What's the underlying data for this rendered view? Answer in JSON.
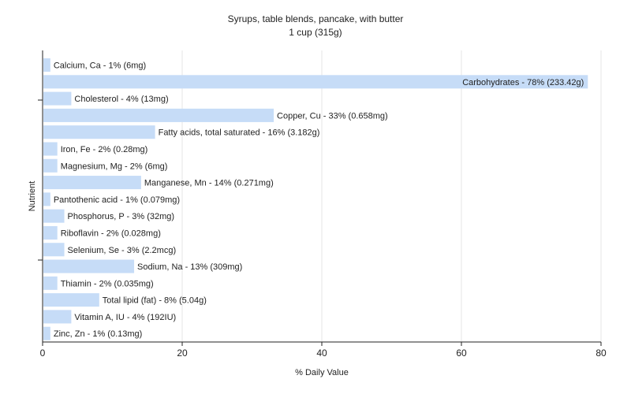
{
  "chart_data": {
    "type": "bar",
    "orientation": "horizontal",
    "title": "Syrups, table blends, pancake, with butter",
    "subtitle": "1 cup (315g)",
    "xlabel": "% Daily Value",
    "ylabel": "Nutrient",
    "xlim": [
      0,
      80
    ],
    "xticks": [
      0,
      20,
      40,
      60,
      80
    ],
    "grid": true,
    "bar_color": "#c6dcf7",
    "categories": [
      "Calcium, Ca",
      "Carbohydrates",
      "Cholesterol",
      "Copper, Cu",
      "Fatty acids, total saturated",
      "Iron, Fe",
      "Magnesium, Mg",
      "Manganese, Mn",
      "Pantothenic acid",
      "Phosphorus, P",
      "Riboflavin",
      "Selenium, Se",
      "Sodium, Na",
      "Thiamin",
      "Total lipid (fat)",
      "Vitamin A, IU",
      "Zinc, Zn"
    ],
    "values": [
      1,
      78,
      4,
      33,
      16,
      2,
      2,
      14,
      1,
      3,
      2,
      3,
      13,
      2,
      8,
      4,
      1
    ],
    "labels": [
      "Calcium, Ca - 1% (6mg)",
      "Carbohydrates - 78% (233.42g)",
      "Cholesterol - 4% (13mg)",
      "Copper, Cu - 33% (0.658mg)",
      "Fatty acids, total saturated - 16% (3.182g)",
      "Iron, Fe - 2% (0.28mg)",
      "Magnesium, Mg - 2% (6mg)",
      "Manganese, Mn - 14% (0.271mg)",
      "Pantothenic acid - 1% (0.079mg)",
      "Phosphorus, P - 3% (32mg)",
      "Riboflavin - 2% (0.028mg)",
      "Selenium, Se - 3% (2.2mcg)",
      "Sodium, Na - 13% (309mg)",
      "Thiamin - 2% (0.035mg)",
      "Total lipid (fat) - 8% (5.04g)",
      "Vitamin A, IU - 4% (192IU)",
      "Zinc, Zn - 1% (0.13mg)"
    ]
  }
}
